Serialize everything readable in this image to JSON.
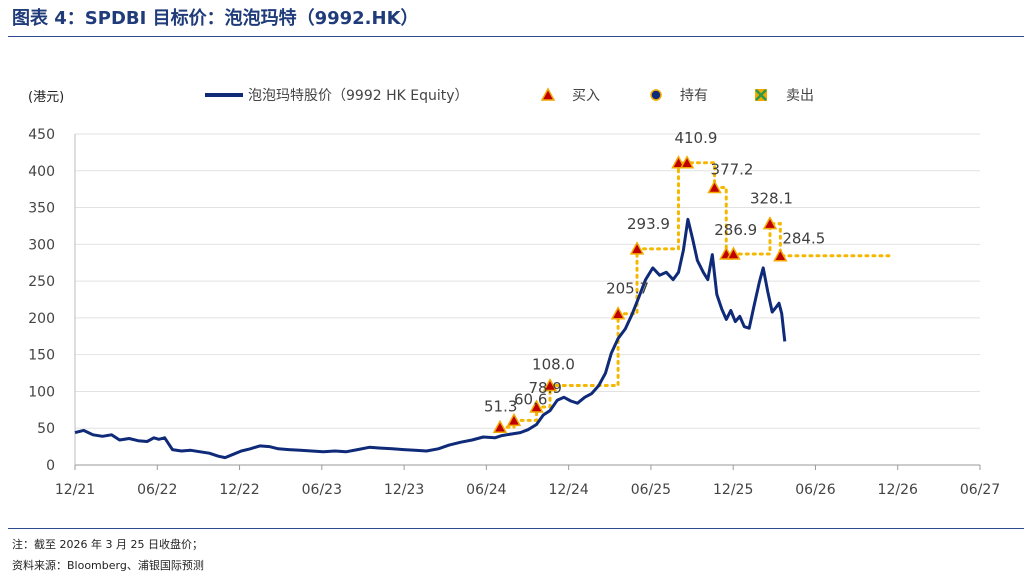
{
  "header": {
    "title": "图表 4：SPDBI 目标价：泡泡玛特（9992.HK）"
  },
  "footer": {
    "note": "注：截至 2026 年 3 月 25 日收盘价；",
    "source": "资料来源：Bloomberg、浦银国际预测"
  },
  "colors": {
    "price_line": "#0e2a78",
    "buy_marker": "#f2a900",
    "buy_marker_edge": "#c00000",
    "target_line": "#f5b800",
    "hold_marker": "#0e2a78",
    "sell_marker": "#2e9a4a"
  },
  "chart_data": {
    "type": "line",
    "ylabel": "(港元)",
    "ylim": [
      0,
      450
    ],
    "yticks": [
      0,
      50,
      100,
      150,
      200,
      250,
      300,
      350,
      400,
      450
    ],
    "xticks": [
      "12/21",
      "06/22",
      "12/22",
      "06/23",
      "12/23",
      "06/24",
      "12/24",
      "06/25",
      "12/25",
      "06/26",
      "12/26",
      "06/27"
    ],
    "grid": true,
    "legend": {
      "position": "top",
      "entries": [
        {
          "label": "泡泡玛特股价（9992 HK Equity）",
          "type": "line"
        },
        {
          "label": "买入",
          "type": "triangle"
        },
        {
          "label": "持有",
          "type": "circle"
        },
        {
          "label": "卖出",
          "type": "cross"
        }
      ]
    },
    "price_series": {
      "name": "泡泡玛特股价（9992 HK Equity）",
      "points": [
        [
          "2021-12-01",
          44
        ],
        [
          "2021-12-20",
          47
        ],
        [
          "2022-01-10",
          41
        ],
        [
          "2022-01-31",
          39
        ],
        [
          "2022-02-20",
          41
        ],
        [
          "2022-03-10",
          34
        ],
        [
          "2022-03-31",
          36
        ],
        [
          "2022-04-20",
          33
        ],
        [
          "2022-05-10",
          32
        ],
        [
          "2022-05-25",
          37
        ],
        [
          "2022-06-05",
          35
        ],
        [
          "2022-06-18",
          37
        ],
        [
          "2022-07-05",
          21
        ],
        [
          "2022-07-25",
          19
        ],
        [
          "2022-08-15",
          20
        ],
        [
          "2022-09-05",
          18
        ],
        [
          "2022-09-25",
          16
        ],
        [
          "2022-10-15",
          12
        ],
        [
          "2022-10-30",
          10
        ],
        [
          "2022-11-15",
          14
        ],
        [
          "2022-12-05",
          19
        ],
        [
          "2022-12-25",
          22
        ],
        [
          "2023-01-15",
          26
        ],
        [
          "2023-02-05",
          25
        ],
        [
          "2023-02-25",
          22
        ],
        [
          "2023-03-20",
          21
        ],
        [
          "2023-04-15",
          20
        ],
        [
          "2023-05-10",
          19
        ],
        [
          "2023-06-05",
          18
        ],
        [
          "2023-07-01",
          19
        ],
        [
          "2023-07-25",
          18
        ],
        [
          "2023-08-20",
          21
        ],
        [
          "2023-09-15",
          24
        ],
        [
          "2023-10-10",
          23
        ],
        [
          "2023-11-05",
          22
        ],
        [
          "2023-11-30",
          21
        ],
        [
          "2023-12-25",
          20
        ],
        [
          "2024-01-20",
          19
        ],
        [
          "2024-02-15",
          22
        ],
        [
          "2024-03-10",
          27
        ],
        [
          "2024-04-05",
          31
        ],
        [
          "2024-04-30",
          34
        ],
        [
          "2024-05-25",
          38
        ],
        [
          "2024-06-20",
          37
        ],
        [
          "2024-07-05",
          40
        ],
        [
          "2024-07-25",
          42
        ],
        [
          "2024-08-15",
          44
        ],
        [
          "2024-09-01",
          48
        ],
        [
          "2024-09-20",
          55
        ],
        [
          "2024-10-05",
          68
        ],
        [
          "2024-10-20",
          74
        ],
        [
          "2024-11-05",
          88
        ],
        [
          "2024-11-20",
          92
        ],
        [
          "2024-12-05",
          87
        ],
        [
          "2024-12-20",
          84
        ],
        [
          "2025-01-05",
          92
        ],
        [
          "2025-01-20",
          97
        ],
        [
          "2025-02-05",
          108
        ],
        [
          "2025-02-20",
          125
        ],
        [
          "2025-03-05",
          152
        ],
        [
          "2025-03-20",
          172
        ],
        [
          "2025-04-05",
          185
        ],
        [
          "2025-04-20",
          205
        ],
        [
          "2025-05-05",
          228
        ],
        [
          "2025-05-20",
          252
        ],
        [
          "2025-06-05",
          268
        ],
        [
          "2025-06-20",
          258
        ],
        [
          "2025-07-05",
          262
        ],
        [
          "2025-07-20",
          252
        ],
        [
          "2025-08-01",
          262
        ],
        [
          "2025-08-12",
          292
        ],
        [
          "2025-08-22",
          334
        ],
        [
          "2025-09-01",
          308
        ],
        [
          "2025-09-12",
          278
        ],
        [
          "2025-09-25",
          262
        ],
        [
          "2025-10-05",
          252
        ],
        [
          "2025-10-15",
          286
        ],
        [
          "2025-10-25",
          232
        ],
        [
          "2025-11-05",
          212
        ],
        [
          "2025-11-15",
          198
        ],
        [
          "2025-11-25",
          210
        ],
        [
          "2025-12-05",
          195
        ],
        [
          "2025-12-15",
          202
        ],
        [
          "2025-12-25",
          188
        ],
        [
          "2026-01-05",
          186
        ],
        [
          "2026-01-15",
          215
        ],
        [
          "2026-01-28",
          250
        ],
        [
          "2026-02-05",
          268
        ],
        [
          "2026-02-15",
          236
        ],
        [
          "2026-02-25",
          208
        ],
        [
          "2026-03-05",
          214
        ],
        [
          "2026-03-12",
          220
        ],
        [
          "2026-03-18",
          206
        ],
        [
          "2026-03-25",
          168
        ]
      ]
    },
    "target_prices": [
      {
        "date": "2024-07-01",
        "value": 51.3,
        "label": "51.3",
        "rating": "买入"
      },
      {
        "date": "2024-08-01",
        "value": 60.6,
        "label": "60.6",
        "rating": "买入"
      },
      {
        "date": "2024-09-20",
        "value": 78.9,
        "label": "78.9",
        "rating": "买入"
      },
      {
        "date": "2024-10-20",
        "value": 108.0,
        "label": "108.0",
        "rating": "买入"
      },
      {
        "date": "2025-03-20",
        "value": 205.7,
        "label": "205.7",
        "rating": "买入"
      },
      {
        "date": "2025-05-01",
        "value": 293.9,
        "label": "293.9",
        "rating": "买入"
      },
      {
        "date": "2025-08-01",
        "value": 410.9,
        "label": "410.9",
        "rating": "买入"
      },
      {
        "date": "2025-08-20",
        "value": 410.9,
        "label": "",
        "rating": "买入"
      },
      {
        "date": "2025-10-20",
        "value": 377.2,
        "label": "377.2",
        "rating": "买入"
      },
      {
        "date": "2025-11-15",
        "value": 286.9,
        "label": "286.9",
        "rating": "买入"
      },
      {
        "date": "2025-12-01",
        "value": 286.9,
        "label": "",
        "rating": "买入"
      },
      {
        "date": "2026-02-20",
        "value": 328.1,
        "label": "328.1",
        "rating": "买入"
      },
      {
        "date": "2026-03-15",
        "value": 284.5,
        "label": "284.5",
        "rating": "买入"
      }
    ],
    "target_line_end": "2026-11-15"
  }
}
